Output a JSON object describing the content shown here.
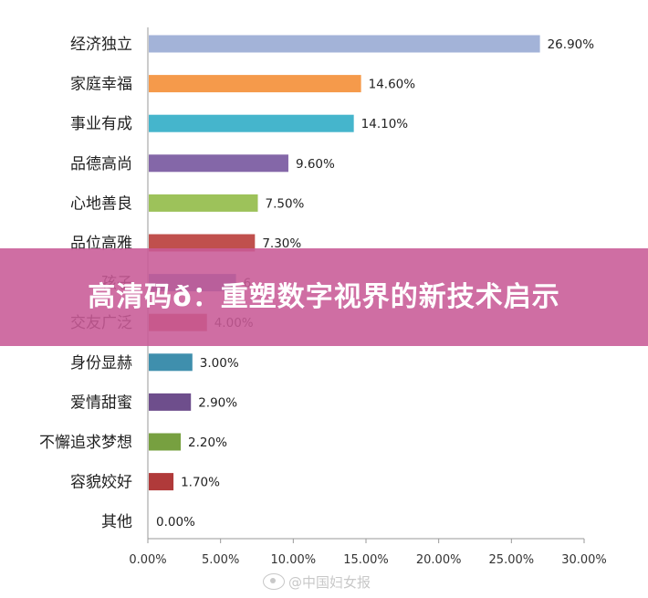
{
  "chart_data": {
    "type": "bar",
    "orientation": "horizontal",
    "categories": [
      "经济独立",
      "家庭幸福",
      "事业有成",
      "品德高尚",
      "心地善良",
      "品位高雅",
      "孩子",
      "交友广泛",
      "身份显赫",
      "爱情甜蜜",
      "不懈追求梦想",
      "容貌姣好",
      "其他"
    ],
    "values": [
      26.9,
      14.6,
      14.1,
      9.6,
      7.5,
      7.3,
      6.0,
      4.0,
      3.0,
      2.9,
      2.2,
      1.7,
      0.0
    ],
    "value_labels": [
      "26.90%",
      "14.60%",
      "14.10%",
      "9.60%",
      "7.50%",
      "7.30%",
      "6",
      "4.00%",
      "3.00%",
      "2.90%",
      "2.20%",
      "1.70%",
      "0.00%"
    ],
    "colors": [
      "#a3b3d8",
      "#f59a4b",
      "#45b5cc",
      "#8467a8",
      "#9dc25a",
      "#c0504d",
      "#4f81bd",
      "#c0504d",
      "#3f8fad",
      "#6e4e8c",
      "#77a040",
      "#b03a3a",
      "#cccccc"
    ],
    "xlim": [
      0,
      30
    ],
    "xticks": [
      "0.00%",
      "5.00%",
      "10.00%",
      "15.00%",
      "20.00%",
      "25.00%",
      "30.00%"
    ],
    "grid": false,
    "title": "",
    "xlabel": "",
    "ylabel": ""
  },
  "overlay": {
    "banner_text": "高清码ð：重塑数字视界的新技术启示",
    "watermark_text": "@中国妇女报"
  }
}
